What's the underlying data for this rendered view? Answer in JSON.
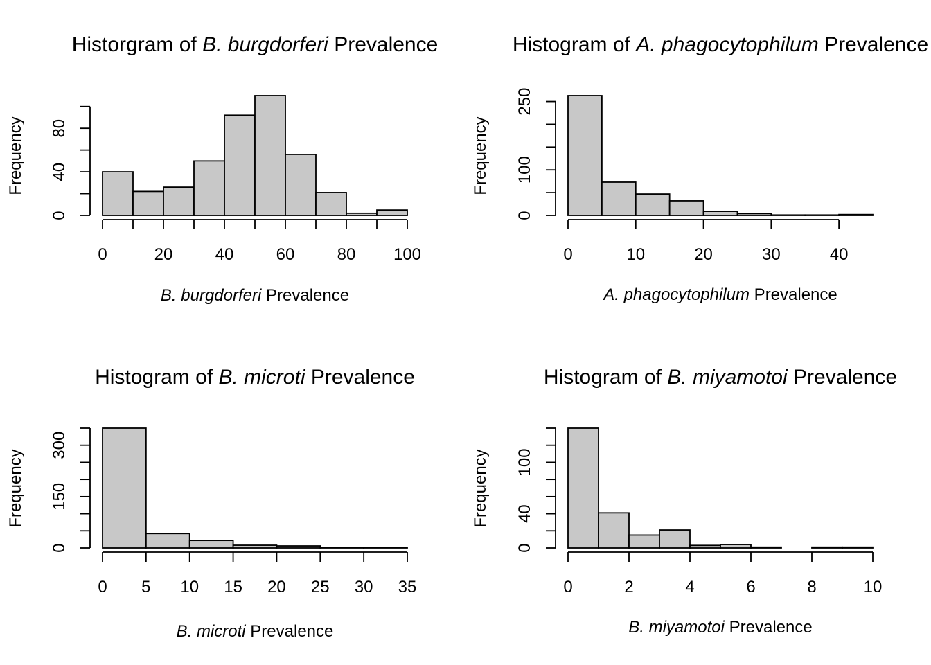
{
  "chart_data": [
    {
      "type": "histogram",
      "title": {
        "prefix": "Historgram of ",
        "italic": "B. burgdorferi",
        "suffix": " Prevalence"
      },
      "xlabel": {
        "italic": "B. burgdorferi",
        "suffix": " Prevalence"
      },
      "ylabel": "Frequency",
      "bin_edges": [
        0,
        10,
        20,
        30,
        40,
        50,
        60,
        70,
        80,
        90,
        100
      ],
      "counts": [
        40,
        22,
        26,
        50,
        92,
        110,
        56,
        21,
        2,
        5
      ],
      "xlim": [
        0,
        100
      ],
      "ylim": [
        0,
        110
      ],
      "xticks": [
        0,
        20,
        40,
        60,
        80,
        100
      ],
      "xticks_minor": [
        10,
        30,
        50,
        70,
        90
      ],
      "yticks": [
        0,
        40,
        80
      ],
      "yticks_minor": [
        20,
        60,
        100
      ]
    },
    {
      "type": "histogram",
      "title": {
        "prefix": "Histogram of ",
        "italic": "A. phagocytophilum",
        "suffix": " Prevalence"
      },
      "xlabel": {
        "italic": "A. phagocytophilum",
        "suffix": " Prevalence"
      },
      "ylabel": "Frequency",
      "bin_edges": [
        0,
        5,
        10,
        15,
        20,
        25,
        30,
        35,
        40,
        45
      ],
      "counts": [
        263,
        73,
        47,
        32,
        9,
        4,
        1,
        1,
        2
      ],
      "xlim": [
        0,
        45
      ],
      "ylim": [
        0,
        263
      ],
      "xticks": [
        0,
        10,
        20,
        30,
        40
      ],
      "xticks_minor": [],
      "yticks": [
        0,
        100,
        250
      ],
      "yticks_minor": [
        50,
        150,
        200
      ]
    },
    {
      "type": "histogram",
      "title": {
        "prefix": "Histogram of ",
        "italic": "B. microti",
        "suffix": " Prevalence"
      },
      "xlabel": {
        "italic": "B. microti",
        "suffix": " Prevalence"
      },
      "ylabel": "Frequency",
      "bin_edges": [
        0,
        5,
        10,
        15,
        20,
        25,
        30,
        35
      ],
      "counts": [
        350,
        42,
        22,
        8,
        6,
        1,
        1
      ],
      "xlim": [
        0,
        35
      ],
      "ylim": [
        0,
        350
      ],
      "xticks": [
        0,
        5,
        10,
        15,
        20,
        25,
        30,
        35
      ],
      "xticks_minor": [],
      "yticks": [
        0,
        150,
        300
      ],
      "yticks_minor": [
        50,
        100,
        200,
        250,
        350
      ]
    },
    {
      "type": "histogram",
      "title": {
        "prefix": "Histogram of ",
        "italic": "B. miyamotoi",
        "suffix": " Prevalence"
      },
      "xlabel": {
        "italic": "B. miyamotoi",
        "suffix": " Prevalence"
      },
      "ylabel": "Frequency",
      "bin_edges": [
        0,
        1,
        2,
        3,
        4,
        5,
        6,
        7,
        8,
        9,
        10
      ],
      "counts": [
        140,
        41,
        15,
        21,
        3,
        4,
        1,
        0,
        1,
        1
      ],
      "xlim": [
        0,
        10
      ],
      "ylim": [
        0,
        140
      ],
      "xticks": [
        0,
        2,
        4,
        6,
        8,
        10
      ],
      "xticks_minor": [],
      "yticks": [
        0,
        40,
        100
      ],
      "yticks_minor": [
        20,
        60,
        80,
        120,
        140
      ]
    }
  ]
}
